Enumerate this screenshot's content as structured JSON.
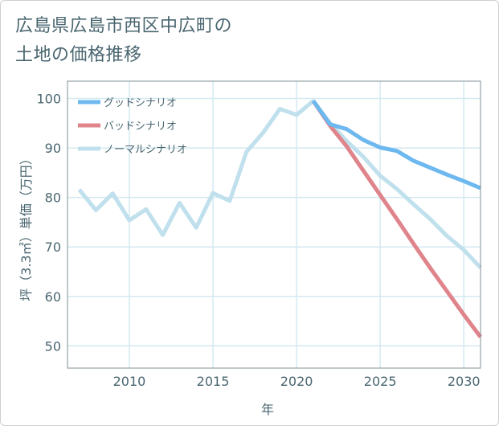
{
  "title_lines": [
    "広島県広島市西区中広町の",
    "土地の価格推移"
  ],
  "colors": {
    "good": "#6cb8ef",
    "bad": "#e0848c",
    "normal": "#bfe0ec",
    "grid": "#d4e9f1",
    "text": "#4a6670"
  },
  "chart_data": {
    "type": "line",
    "title": "広島県広島市西区中広町の土地の価格推移",
    "xlabel": "年",
    "ylabel": "坪（3.3㎡）単価（万円）",
    "xlim": [
      2006.3,
      2031
    ],
    "ylim": [
      45.5,
      103.5
    ],
    "xticks": [
      2010,
      2015,
      2020,
      2025,
      2030
    ],
    "yticks": [
      50,
      60,
      70,
      80,
      90,
      100
    ],
    "legend_position": "top-left",
    "series": [
      {
        "name": "グッドシナリオ",
        "color": "#6cb8ef",
        "x": [
          2021,
          2022,
          2023,
          2024,
          2025,
          2026,
          2027,
          2028,
          2029,
          2030,
          2031
        ],
        "y": [
          99.5,
          94.8,
          93.8,
          91.6,
          90.1,
          89.4,
          87.4,
          86.0,
          84.6,
          83.3,
          81.9
        ]
      },
      {
        "name": "バッドシナリオ",
        "color": "#e0848c",
        "x": [
          2021,
          2022,
          2023,
          2024,
          2025,
          2026,
          2027,
          2028,
          2029,
          2030,
          2031
        ],
        "y": [
          99.5,
          94.5,
          90.3,
          85.4,
          80.5,
          75.6,
          70.6,
          65.7,
          61.0,
          56.3,
          51.8
        ]
      },
      {
        "name": "ノーマルシナリオ",
        "color": "#bfe0ec",
        "x": [
          2007,
          2008,
          2009,
          2010,
          2011,
          2012,
          2013,
          2014,
          2015,
          2016,
          2017,
          2018,
          2019,
          2020,
          2021,
          2022,
          2023,
          2024,
          2025,
          2026,
          2027,
          2028,
          2029,
          2030,
          2031
        ],
        "y": [
          81.6,
          77.4,
          80.8,
          75.4,
          77.6,
          72.4,
          78.9,
          73.9,
          80.9,
          79.3,
          89.2,
          93.1,
          97.9,
          96.7,
          99.5,
          95.0,
          91.4,
          88.2,
          84.4,
          81.7,
          78.6,
          75.6,
          72.2,
          69.4,
          65.8
        ]
      }
    ]
  }
}
